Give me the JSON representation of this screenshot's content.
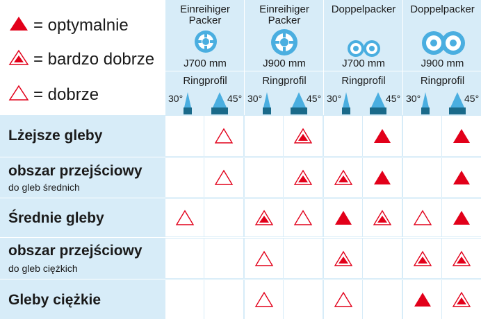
{
  "legend": [
    {
      "symbol": "filled",
      "text": "= optymalnie"
    },
    {
      "symbol": "dotted",
      "text": "= bardzo dobrze"
    },
    {
      "symbol": "outline",
      "text": "= dobrze"
    }
  ],
  "packers": [
    {
      "title_line1": "Einreihiger",
      "title_line2": "Packer",
      "size": "Ј700 mm",
      "icon": "single-ring-icon",
      "ring": "Ringprofil"
    },
    {
      "title_line1": "Einreihiger",
      "title_line2": "Packer",
      "size": "Ј900 mm",
      "icon": "single-ring-icon",
      "ring": "Ringprofil"
    },
    {
      "title_line1": "Doppelpacker",
      "title_line2": "",
      "size": "Ј700 mm",
      "icon": "double-ring-icon",
      "ring": "Ringprofil"
    },
    {
      "title_line1": "Doppelpacker",
      "title_line2": "",
      "size": "Ј900 mm",
      "icon": "double-ring-icon",
      "ring": "Ringprofil"
    }
  ],
  "angles": {
    "left": "30°",
    "right": "45°"
  },
  "rows": [
    {
      "label": "Lżejsze gleby",
      "sub": "",
      "marks": [
        "",
        "outline",
        "",
        "dotted",
        "",
        "filled",
        "",
        "filled"
      ]
    },
    {
      "label": "obszar przejściowy",
      "sub": "do gleb średnich",
      "marks": [
        "",
        "outline",
        "",
        "dotted",
        "dotted",
        "filled",
        "",
        "filled"
      ]
    },
    {
      "label": "Średnie gleby",
      "sub": "",
      "marks": [
        "outline",
        "",
        "dotted",
        "outline",
        "filled",
        "dotted",
        "outline",
        "filled"
      ]
    },
    {
      "label": "obszar przejściowy",
      "sub": "do gleb ciężkich",
      "marks": [
        "",
        "",
        "outline",
        "",
        "dotted",
        "",
        "dotted",
        "dotted"
      ]
    },
    {
      "label": "Gleby ciężkie",
      "sub": "",
      "marks": [
        "",
        "",
        "outline",
        "",
        "outline",
        "",
        "filled",
        "dotted"
      ]
    }
  ],
  "colors": {
    "header_bg": "#d7ecf8",
    "triangle_red": "#e2001a",
    "icon_blue": "#4aaee0",
    "wedge_dark": "#1a6a8a"
  }
}
